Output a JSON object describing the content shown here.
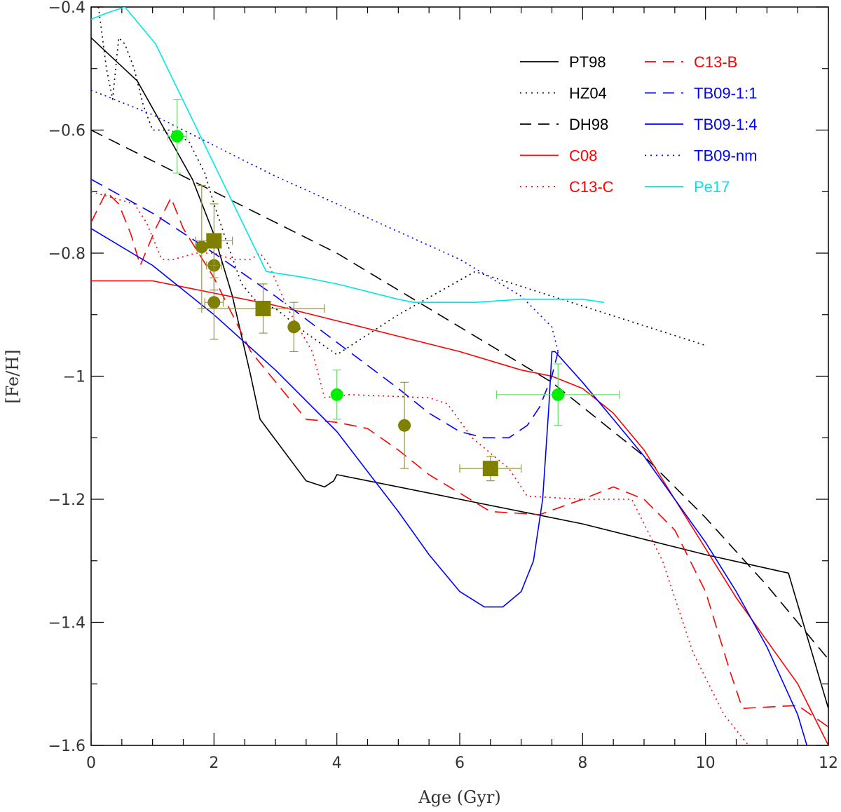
{
  "chart_data": {
    "type": "line",
    "title": "",
    "xlabel": "Age (Gyr)",
    "ylabel": "[Fe/H]",
    "xlim": [
      0,
      12
    ],
    "ylim": [
      -1.6,
      -0.4
    ],
    "x_ticks": [
      0,
      2,
      4,
      6,
      8,
      10,
      12
    ],
    "x_tick_labels": [
      "0",
      "2",
      "4",
      "6",
      "8",
      "10",
      "12"
    ],
    "y_ticks": [
      -1.6,
      -1.4,
      -1.2,
      -1.0,
      -0.8,
      -0.6,
      -0.4
    ],
    "y_tick_labels": [
      "−1.6",
      "−1.4",
      "−1.2",
      "−1",
      "−0.8",
      "−0.6",
      "−0.4"
    ],
    "x_minor_step": 0.5,
    "y_minor_step": 0.1,
    "grid": false,
    "legend_position": "top-right",
    "series": [
      {
        "name": "PT98",
        "color": "#000000",
        "dash": "solid",
        "x": [
          0,
          0.75,
          1.65,
          2.0,
          2.3,
          2.6,
          2.75,
          3.05,
          3.5,
          3.8,
          3.95,
          4.0,
          6,
          8,
          10,
          11.35,
          12
        ],
        "y": [
          -0.45,
          -0.52,
          -0.68,
          -0.77,
          -0.87,
          -1.0,
          -1.07,
          -1.11,
          -1.17,
          -1.18,
          -1.17,
          -1.16,
          -1.2,
          -1.24,
          -1.29,
          -1.32,
          -1.54
        ]
      },
      {
        "name": "HZ04",
        "color": "#000000",
        "dash": "dotted",
        "x": [
          0.12,
          0.25,
          0.35,
          0.45,
          0.55,
          0.7,
          0.85,
          1.0,
          1.3,
          1.6,
          1.85,
          2.0,
          2.2,
          2.45,
          2.7,
          3.0,
          3.5,
          4.0,
          5.0,
          6.25,
          7.5,
          10.0
        ],
        "y": [
          -0.4,
          -0.5,
          -0.55,
          -0.45,
          -0.46,
          -0.5,
          -0.56,
          -0.6,
          -0.6,
          -0.62,
          -0.67,
          -0.72,
          -0.78,
          -0.85,
          -0.88,
          -0.89,
          -0.93,
          -0.965,
          -0.9,
          -0.83,
          -0.87,
          -0.95
        ]
      },
      {
        "name": "DH98",
        "color": "#000000",
        "dash": "dashed",
        "x": [
          0,
          2,
          4,
          6,
          7.5,
          9,
          10,
          11,
          12
        ],
        "y": [
          -0.6,
          -0.7,
          -0.8,
          -0.92,
          -1.01,
          -1.13,
          -1.23,
          -1.34,
          -1.46
        ]
      },
      {
        "name": "C08",
        "color": "#ff0000",
        "dash": "solid",
        "x": [
          0,
          1,
          2,
          3,
          4,
          5,
          6,
          7,
          7.5,
          8,
          8.5,
          9,
          9.5,
          10,
          10.5,
          11,
          11.5,
          12
        ],
        "y": [
          -0.845,
          -0.845,
          -0.865,
          -0.885,
          -0.91,
          -0.935,
          -0.96,
          -0.99,
          -1.0,
          -1.02,
          -1.06,
          -1.12,
          -1.2,
          -1.28,
          -1.36,
          -1.43,
          -1.5,
          -1.6
        ]
      },
      {
        "name": "C13-C",
        "color": "#ff0000",
        "dash": "dotted",
        "x": [
          0,
          0.7,
          0.9,
          1.15,
          1.35,
          1.7,
          2.0,
          2.3,
          2.6,
          2.75,
          2.9,
          3.2,
          3.6,
          3.8,
          4.2,
          5.5,
          5.8,
          6.2,
          6.8,
          7.1,
          8.0,
          8.8,
          9.3,
          9.8,
          10.3,
          10.7
        ],
        "y": [
          -0.7,
          -0.72,
          -0.75,
          -0.81,
          -0.81,
          -0.8,
          -0.8,
          -0.81,
          -0.81,
          -0.8,
          -0.82,
          -0.89,
          -0.96,
          -1.035,
          -1.03,
          -1.035,
          -1.045,
          -1.1,
          -1.15,
          -1.195,
          -1.2,
          -1.2,
          -1.3,
          -1.45,
          -1.55,
          -1.6
        ]
      },
      {
        "name": "C13-B",
        "color": "#ff0000",
        "dash": "dashed",
        "x": [
          0,
          0.25,
          0.45,
          0.65,
          0.8,
          1.05,
          1.3,
          1.5,
          1.75,
          2.0,
          2.6,
          3.5,
          4.0,
          4.5,
          5.0,
          5.5,
          6.5,
          7.3,
          8.0,
          8.5,
          9.0,
          9.5,
          10.0,
          10.4,
          10.6,
          11.5,
          12
        ],
        "y": [
          -0.75,
          -0.7,
          -0.72,
          -0.77,
          -0.82,
          -0.76,
          -0.71,
          -0.76,
          -0.8,
          -0.84,
          -0.96,
          -1.07,
          -1.075,
          -1.085,
          -1.12,
          -1.16,
          -1.22,
          -1.225,
          -1.2,
          -1.18,
          -1.2,
          -1.25,
          -1.35,
          -1.48,
          -1.54,
          -1.535,
          -1.57
        ]
      },
      {
        "name": "TB09-1:1",
        "color": "#0000ff",
        "dash": "dashed",
        "x": [
          0,
          1,
          2,
          3,
          4,
          5,
          5.5,
          6,
          6.4,
          6.8,
          7.1,
          7.3,
          7.5,
          7.6
        ],
        "y": [
          -0.68,
          -0.735,
          -0.8,
          -0.87,
          -0.945,
          -1.02,
          -1.06,
          -1.09,
          -1.1,
          -1.1,
          -1.08,
          -1.05,
          -1.0,
          -0.96
        ]
      },
      {
        "name": "TB09-1:4",
        "color": "#0000ff",
        "dash": "solid",
        "x": [
          0,
          1,
          2,
          3,
          4,
          5,
          5.5,
          6,
          6.4,
          6.7,
          7.0,
          7.2,
          7.35,
          7.45,
          7.5,
          7.55,
          8,
          8.5,
          9,
          9.5,
          10,
          10.5,
          11,
          11.5,
          11.65
        ],
        "y": [
          -0.76,
          -0.82,
          -0.9,
          -0.99,
          -1.09,
          -1.22,
          -1.29,
          -1.35,
          -1.375,
          -1.375,
          -1.35,
          -1.3,
          -1.2,
          -1.05,
          -0.96,
          -0.96,
          -1.01,
          -1.07,
          -1.13,
          -1.2,
          -1.27,
          -1.35,
          -1.44,
          -1.55,
          -1.6
        ]
      },
      {
        "name": "TB09-nm",
        "color": "#0000ff",
        "dash": "dotted",
        "x": [
          0,
          1,
          2,
          3,
          4,
          5,
          6,
          7,
          7.5,
          7.6
        ],
        "y": [
          -0.535,
          -0.575,
          -0.625,
          -0.675,
          -0.72,
          -0.765,
          -0.81,
          -0.87,
          -0.92,
          -0.96
        ]
      },
      {
        "name": "Pe17",
        "color": "#00e5e5",
        "dash": "solid",
        "x": [
          0,
          0.25,
          0.55,
          1.05,
          2.85,
          3.5,
          4.0,
          5.0,
          5.25,
          6.25,
          7.0,
          7.5,
          8.0,
          8.35
        ],
        "y": [
          -0.42,
          -0.41,
          -0.4,
          -0.46,
          -0.83,
          -0.84,
          -0.85,
          -0.875,
          -0.88,
          -0.88,
          -0.875,
          -0.875,
          -0.875,
          -0.88
        ]
      }
    ],
    "points": [
      {
        "group": "green-circle",
        "color": "#00ee00",
        "err_color": "#66dd66",
        "marker": "circle",
        "x": 1.4,
        "y": -0.61,
        "xerr": 0.15,
        "yerr": 0.06
      },
      {
        "group": "green-circle",
        "color": "#00ee00",
        "err_color": "#66dd66",
        "marker": "circle",
        "x": 4.0,
        "y": -1.03,
        "xerr": 0.0,
        "yerr": 0.04
      },
      {
        "group": "green-circle",
        "color": "#00ee00",
        "err_color": "#66dd66",
        "marker": "circle",
        "x": 7.6,
        "y": -1.03,
        "xerr": 1.0,
        "yerr": 0.05
      },
      {
        "group": "olive-circle",
        "color": "#808000",
        "err_color": "#999933",
        "marker": "circle",
        "x": 1.8,
        "y": -0.79,
        "xerr": 0.0,
        "yerr": 0.1
      },
      {
        "group": "olive-circle",
        "color": "#808000",
        "err_color": "#999933",
        "marker": "circle",
        "x": 2.0,
        "y": -0.82,
        "xerr": 0.12,
        "yerr": 0.04
      },
      {
        "group": "olive-circle",
        "color": "#808000",
        "err_color": "#999933",
        "marker": "circle",
        "x": 2.0,
        "y": -0.88,
        "xerr": 0.15,
        "yerr": 0.06
      },
      {
        "group": "olive-circle",
        "color": "#808000",
        "err_color": "#999933",
        "marker": "circle",
        "x": 3.3,
        "y": -0.92,
        "xerr": 0.0,
        "yerr": 0.04
      },
      {
        "group": "olive-circle",
        "color": "#808000",
        "err_color": "#999933",
        "marker": "circle",
        "x": 5.1,
        "y": -1.08,
        "xerr": 0.0,
        "yerr": 0.07
      },
      {
        "group": "olive-square",
        "color": "#808000",
        "err_color": "#999933",
        "marker": "square",
        "x": 2.0,
        "y": -0.78,
        "xerr": 0.3,
        "yerr": 0.06
      },
      {
        "group": "olive-square",
        "color": "#808000",
        "err_color": "#999933",
        "marker": "square",
        "x": 2.8,
        "y": -0.89,
        "xerr": 1.0,
        "yerr": 0.04
      },
      {
        "group": "olive-square",
        "color": "#808000",
        "err_color": "#999933",
        "marker": "square",
        "x": 6.5,
        "y": -1.15,
        "xerr": 0.5,
        "yerr": 0.02
      }
    ],
    "legend": {
      "columns": [
        [
          {
            "name": "PT98",
            "color": "#000000",
            "text_color": "#000000",
            "dash": "solid"
          },
          {
            "name": "HZ04",
            "color": "#000000",
            "text_color": "#000000",
            "dash": "dotted"
          },
          {
            "name": "DH98",
            "color": "#000000",
            "text_color": "#000000",
            "dash": "dashed"
          },
          {
            "name": "C08",
            "color": "#ff0000",
            "text_color": "#ff0000",
            "dash": "solid"
          },
          {
            "name": "C13-C",
            "color": "#ff0000",
            "text_color": "#ff0000",
            "dash": "dotted"
          }
        ],
        [
          {
            "name": "C13-B",
            "color": "#ff0000",
            "text_color": "#ff0000",
            "dash": "dashed"
          },
          {
            "name": "TB09-1:1",
            "color": "#0000ff",
            "text_color": "#0000ff",
            "dash": "dashed"
          },
          {
            "name": "TB09-1:4",
            "color": "#0000ff",
            "text_color": "#0000ff",
            "dash": "solid"
          },
          {
            "name": "TB09-nm",
            "color": "#0000ff",
            "text_color": "#0000ff",
            "dash": "dotted"
          },
          {
            "name": "Pe17",
            "color": "#00e5e5",
            "text_color": "#00e5e5",
            "dash": "solid"
          }
        ]
      ]
    }
  }
}
